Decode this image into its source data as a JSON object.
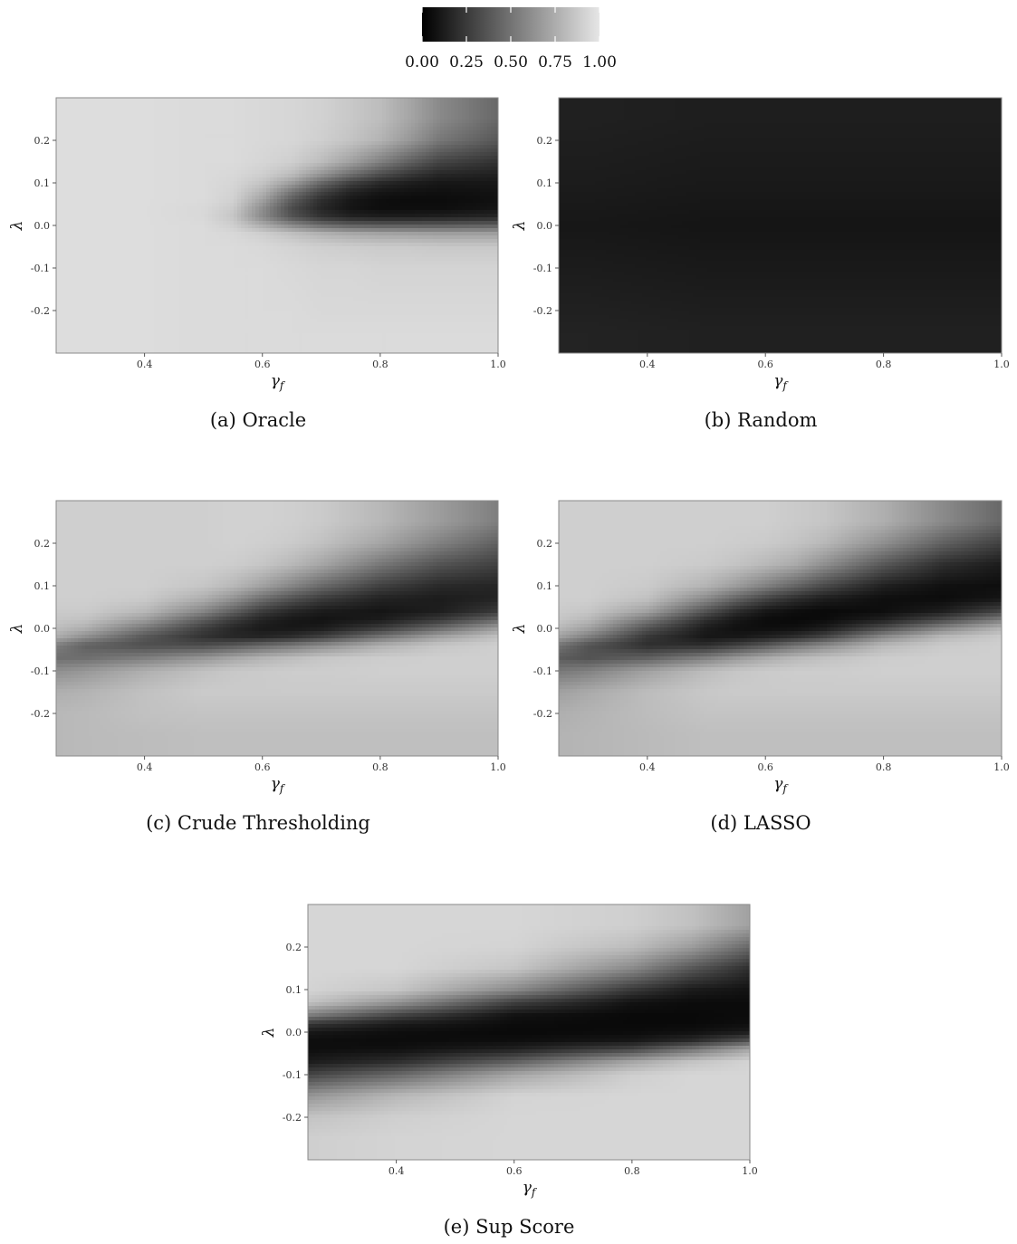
{
  "legend": {
    "ticks": [
      "0.00",
      "0.25",
      "0.50",
      "0.75",
      "1.00"
    ],
    "tick_values": [
      0,
      0.25,
      0.5,
      0.75,
      1.0
    ],
    "range": [
      0,
      1
    ],
    "colors": [
      "#000000",
      "#e6e6e6"
    ]
  },
  "chart_data": [
    {
      "type": "heatmap",
      "caption": "(a) Oracle",
      "xlabel": "γf",
      "ylabel": "λ",
      "xlim": [
        0.25,
        1.0
      ],
      "ylim": [
        -0.3,
        0.3
      ],
      "xticks": [
        0.4,
        0.6,
        0.8,
        1.0
      ],
      "xtick_labels": [
        "0.4",
        "0.6",
        "0.8",
        "1.0"
      ],
      "yticks": [
        0.2,
        0.1,
        0.0,
        -0.1,
        -0.2
      ],
      "ytick_labels": [
        "0.2",
        "0.1",
        "0.0",
        "-0.1",
        "-0.2"
      ],
      "x": [
        0.3,
        0.4,
        0.5,
        0.55,
        0.6,
        0.65,
        0.7,
        0.75,
        0.8,
        0.85,
        0.9,
        1.0
      ],
      "y": [
        0.25,
        0.2,
        0.15,
        0.12,
        0.1,
        0.08,
        0.06,
        0.04,
        0.02,
        0.0,
        -0.02,
        -0.05,
        -0.1,
        -0.2,
        -0.25
      ],
      "z": [
        [
          0.96,
          0.96,
          0.95,
          0.95,
          0.94,
          0.93,
          0.91,
          0.87,
          0.82,
          0.72,
          0.6,
          0.45
        ],
        [
          0.96,
          0.96,
          0.95,
          0.95,
          0.94,
          0.93,
          0.9,
          0.85,
          0.78,
          0.66,
          0.52,
          0.38
        ],
        [
          0.96,
          0.96,
          0.95,
          0.95,
          0.93,
          0.9,
          0.82,
          0.7,
          0.56,
          0.42,
          0.3,
          0.22
        ],
        [
          0.96,
          0.96,
          0.95,
          0.94,
          0.9,
          0.82,
          0.65,
          0.48,
          0.34,
          0.24,
          0.17,
          0.14
        ],
        [
          0.96,
          0.96,
          0.95,
          0.93,
          0.85,
          0.68,
          0.45,
          0.28,
          0.18,
          0.13,
          0.1,
          0.1
        ],
        [
          0.96,
          0.96,
          0.95,
          0.92,
          0.78,
          0.52,
          0.3,
          0.16,
          0.1,
          0.08,
          0.07,
          0.08
        ],
        [
          0.96,
          0.96,
          0.95,
          0.91,
          0.7,
          0.4,
          0.2,
          0.1,
          0.06,
          0.05,
          0.05,
          0.07
        ],
        [
          0.96,
          0.96,
          0.94,
          0.88,
          0.62,
          0.33,
          0.17,
          0.09,
          0.06,
          0.06,
          0.06,
          0.09
        ],
        [
          0.96,
          0.96,
          0.94,
          0.86,
          0.6,
          0.36,
          0.22,
          0.15,
          0.13,
          0.13,
          0.14,
          0.17
        ],
        [
          0.96,
          0.96,
          0.95,
          0.9,
          0.75,
          0.6,
          0.48,
          0.42,
          0.4,
          0.4,
          0.4,
          0.42
        ],
        [
          0.96,
          0.96,
          0.95,
          0.94,
          0.9,
          0.84,
          0.78,
          0.74,
          0.72,
          0.71,
          0.7,
          0.7
        ],
        [
          0.96,
          0.96,
          0.95,
          0.95,
          0.94,
          0.92,
          0.9,
          0.89,
          0.88,
          0.88,
          0.87,
          0.87
        ],
        [
          0.96,
          0.96,
          0.95,
          0.95,
          0.95,
          0.94,
          0.93,
          0.93,
          0.92,
          0.92,
          0.92,
          0.92
        ],
        [
          0.96,
          0.96,
          0.95,
          0.95,
          0.95,
          0.95,
          0.94,
          0.94,
          0.94,
          0.94,
          0.94,
          0.94
        ],
        [
          0.96,
          0.96,
          0.95,
          0.95,
          0.95,
          0.95,
          0.95,
          0.95,
          0.95,
          0.95,
          0.95,
          0.95
        ]
      ]
    },
    {
      "type": "heatmap",
      "caption": "(b) Random",
      "xlabel": "γf",
      "ylabel": "λ",
      "xlim": [
        0.25,
        1.0
      ],
      "ylim": [
        -0.3,
        0.3
      ],
      "xticks": [
        0.4,
        0.6,
        0.8,
        1.0
      ],
      "xtick_labels": [
        "0.4",
        "0.6",
        "0.8",
        "1.0"
      ],
      "yticks": [
        0.2,
        0.1,
        0.0,
        -0.1,
        -0.2
      ],
      "ytick_labels": [
        "0.2",
        "0.1",
        "0.0",
        "-0.1",
        "-0.2"
      ],
      "x": [
        0.3,
        0.5,
        0.7,
        0.9,
        1.0
      ],
      "y": [
        0.25,
        0.1,
        0.0,
        -0.1,
        -0.25
      ],
      "z": [
        [
          0.14,
          0.13,
          0.13,
          0.13,
          0.13
        ],
        [
          0.12,
          0.11,
          0.11,
          0.11,
          0.11
        ],
        [
          0.1,
          0.09,
          0.09,
          0.09,
          0.09
        ],
        [
          0.12,
          0.11,
          0.11,
          0.11,
          0.11
        ],
        [
          0.15,
          0.14,
          0.14,
          0.14,
          0.14
        ]
      ]
    },
    {
      "type": "heatmap",
      "caption": "(c) Crude Thresholding",
      "xlabel": "γf",
      "ylabel": "λ",
      "xlim": [
        0.25,
        1.0
      ],
      "ylim": [
        -0.3,
        0.3
      ],
      "xticks": [
        0.4,
        0.6,
        0.8,
        1.0
      ],
      "xtick_labels": [
        "0.4",
        "0.6",
        "0.8",
        "1.0"
      ],
      "yticks": [
        0.2,
        0.1,
        0.0,
        -0.1,
        -0.2
      ],
      "ytick_labels": [
        "0.2",
        "0.1",
        "0.0",
        "-0.1",
        "-0.2"
      ],
      "x": [
        0.25,
        0.3,
        0.4,
        0.5,
        0.55,
        0.6,
        0.65,
        0.7,
        0.8,
        0.9,
        1.0
      ],
      "y": [
        0.25,
        0.2,
        0.15,
        0.1,
        0.07,
        0.04,
        0.02,
        0.0,
        -0.02,
        -0.04,
        -0.07,
        -0.1,
        -0.15,
        -0.2,
        -0.25
      ],
      "z": [
        [
          0.9,
          0.9,
          0.9,
          0.9,
          0.91,
          0.91,
          0.9,
          0.88,
          0.8,
          0.68,
          0.55
        ],
        [
          0.9,
          0.9,
          0.9,
          0.9,
          0.91,
          0.9,
          0.88,
          0.84,
          0.72,
          0.56,
          0.42
        ],
        [
          0.9,
          0.9,
          0.9,
          0.9,
          0.89,
          0.86,
          0.8,
          0.72,
          0.52,
          0.36,
          0.28
        ],
        [
          0.9,
          0.9,
          0.9,
          0.86,
          0.8,
          0.7,
          0.58,
          0.46,
          0.28,
          0.18,
          0.16
        ],
        [
          0.9,
          0.9,
          0.88,
          0.76,
          0.64,
          0.48,
          0.36,
          0.26,
          0.15,
          0.12,
          0.15
        ],
        [
          0.88,
          0.88,
          0.8,
          0.58,
          0.42,
          0.26,
          0.17,
          0.12,
          0.09,
          0.13,
          0.25
        ],
        [
          0.86,
          0.84,
          0.68,
          0.4,
          0.26,
          0.15,
          0.1,
          0.08,
          0.12,
          0.25,
          0.45
        ],
        [
          0.82,
          0.76,
          0.52,
          0.27,
          0.17,
          0.11,
          0.1,
          0.12,
          0.26,
          0.46,
          0.68
        ],
        [
          0.75,
          0.62,
          0.38,
          0.22,
          0.17,
          0.16,
          0.2,
          0.28,
          0.5,
          0.7,
          0.84
        ],
        [
          0.55,
          0.42,
          0.34,
          0.33,
          0.38,
          0.45,
          0.52,
          0.6,
          0.76,
          0.86,
          0.9
        ],
        [
          0.48,
          0.48,
          0.55,
          0.65,
          0.72,
          0.78,
          0.82,
          0.86,
          0.89,
          0.9,
          0.9
        ],
        [
          0.62,
          0.66,
          0.76,
          0.84,
          0.87,
          0.88,
          0.89,
          0.89,
          0.9,
          0.9,
          0.9
        ],
        [
          0.76,
          0.78,
          0.84,
          0.88,
          0.88,
          0.88,
          0.88,
          0.88,
          0.88,
          0.88,
          0.88
        ],
        [
          0.8,
          0.81,
          0.84,
          0.85,
          0.85,
          0.85,
          0.85,
          0.85,
          0.85,
          0.85,
          0.85
        ],
        [
          0.8,
          0.81,
          0.82,
          0.83,
          0.83,
          0.83,
          0.83,
          0.83,
          0.83,
          0.83,
          0.83
        ]
      ]
    },
    {
      "type": "heatmap",
      "caption": "(d) LASSO",
      "xlabel": "γf",
      "ylabel": "λ",
      "xlim": [
        0.25,
        1.0
      ],
      "ylim": [
        -0.3,
        0.3
      ],
      "xticks": [
        0.4,
        0.6,
        0.8,
        1.0
      ],
      "xtick_labels": [
        "0.4",
        "0.6",
        "0.8",
        "1.0"
      ],
      "yticks": [
        0.2,
        0.1,
        0.0,
        -0.1,
        -0.2
      ],
      "ytick_labels": [
        "0.2",
        "0.1",
        "0.0",
        "-0.1",
        "-0.2"
      ],
      "x": [
        0.25,
        0.3,
        0.4,
        0.5,
        0.55,
        0.6,
        0.65,
        0.7,
        0.8,
        0.9,
        1.0
      ],
      "y": [
        0.25,
        0.2,
        0.15,
        0.1,
        0.07,
        0.04,
        0.02,
        0.0,
        -0.02,
        -0.04,
        -0.07,
        -0.1,
        -0.15,
        -0.2,
        -0.25
      ],
      "z": [
        [
          0.9,
          0.9,
          0.9,
          0.9,
          0.9,
          0.9,
          0.88,
          0.86,
          0.76,
          0.6,
          0.45
        ],
        [
          0.9,
          0.9,
          0.9,
          0.9,
          0.89,
          0.88,
          0.85,
          0.8,
          0.62,
          0.42,
          0.28
        ],
        [
          0.9,
          0.9,
          0.9,
          0.88,
          0.85,
          0.8,
          0.74,
          0.62,
          0.38,
          0.2,
          0.12
        ],
        [
          0.9,
          0.9,
          0.88,
          0.78,
          0.68,
          0.56,
          0.44,
          0.32,
          0.14,
          0.07,
          0.06
        ],
        [
          0.9,
          0.9,
          0.84,
          0.6,
          0.44,
          0.3,
          0.2,
          0.13,
          0.06,
          0.05,
          0.09
        ],
        [
          0.88,
          0.86,
          0.7,
          0.36,
          0.2,
          0.1,
          0.06,
          0.04,
          0.06,
          0.13,
          0.3
        ],
        [
          0.86,
          0.8,
          0.52,
          0.2,
          0.1,
          0.05,
          0.04,
          0.05,
          0.14,
          0.32,
          0.55
        ],
        [
          0.8,
          0.7,
          0.36,
          0.12,
          0.07,
          0.06,
          0.07,
          0.12,
          0.34,
          0.58,
          0.78
        ],
        [
          0.7,
          0.55,
          0.24,
          0.1,
          0.1,
          0.14,
          0.2,
          0.3,
          0.6,
          0.8,
          0.88
        ],
        [
          0.5,
          0.36,
          0.2,
          0.2,
          0.28,
          0.38,
          0.5,
          0.6,
          0.8,
          0.88,
          0.9
        ],
        [
          0.4,
          0.36,
          0.42,
          0.56,
          0.66,
          0.74,
          0.8,
          0.84,
          0.89,
          0.9,
          0.9
        ],
        [
          0.52,
          0.56,
          0.7,
          0.82,
          0.86,
          0.88,
          0.89,
          0.89,
          0.9,
          0.9,
          0.9
        ],
        [
          0.7,
          0.74,
          0.82,
          0.87,
          0.88,
          0.88,
          0.88,
          0.88,
          0.88,
          0.88,
          0.88
        ],
        [
          0.76,
          0.78,
          0.82,
          0.85,
          0.85,
          0.85,
          0.85,
          0.85,
          0.85,
          0.85,
          0.85
        ],
        [
          0.78,
          0.79,
          0.81,
          0.83,
          0.83,
          0.83,
          0.83,
          0.83,
          0.83,
          0.83,
          0.83
        ]
      ]
    },
    {
      "type": "heatmap",
      "caption": "(e) Sup Score",
      "xlabel": "γf",
      "ylabel": "λ",
      "xlim": [
        0.25,
        1.0
      ],
      "ylim": [
        -0.3,
        0.3
      ],
      "xticks": [
        0.4,
        0.6,
        0.8,
        1.0
      ],
      "xtick_labels": [
        "0.4",
        "0.6",
        "0.8",
        "1.0"
      ],
      "yticks": [
        0.2,
        0.1,
        0.0,
        -0.1,
        -0.2
      ],
      "ytick_labels": [
        "0.2",
        "0.1",
        "0.0",
        "-0.1",
        "-0.2"
      ],
      "x": [
        0.25,
        0.4,
        0.6,
        0.8,
        0.9,
        1.0
      ],
      "y": [
        0.25,
        0.2,
        0.15,
        0.1,
        0.07,
        0.04,
        0.02,
        0.0,
        -0.02,
        -0.04,
        -0.07,
        -0.1,
        -0.15,
        -0.2,
        -0.25
      ],
      "z": [
        [
          0.93,
          0.93,
          0.93,
          0.9,
          0.84,
          0.7
        ],
        [
          0.93,
          0.93,
          0.92,
          0.82,
          0.68,
          0.45
        ],
        [
          0.93,
          0.93,
          0.86,
          0.6,
          0.38,
          0.2
        ],
        [
          0.92,
          0.86,
          0.6,
          0.25,
          0.12,
          0.08
        ],
        [
          0.85,
          0.65,
          0.28,
          0.08,
          0.05,
          0.05
        ],
        [
          0.55,
          0.3,
          0.08,
          0.04,
          0.04,
          0.05
        ],
        [
          0.25,
          0.12,
          0.05,
          0.04,
          0.04,
          0.06
        ],
        [
          0.1,
          0.06,
          0.04,
          0.05,
          0.07,
          0.12
        ],
        [
          0.06,
          0.05,
          0.06,
          0.1,
          0.18,
          0.35
        ],
        [
          0.06,
          0.07,
          0.14,
          0.3,
          0.5,
          0.72
        ],
        [
          0.12,
          0.2,
          0.42,
          0.72,
          0.85,
          0.92
        ],
        [
          0.3,
          0.45,
          0.72,
          0.9,
          0.93,
          0.93
        ],
        [
          0.65,
          0.8,
          0.92,
          0.93,
          0.93,
          0.93
        ],
        [
          0.85,
          0.9,
          0.93,
          0.93,
          0.93,
          0.93
        ],
        [
          0.9,
          0.92,
          0.93,
          0.93,
          0.93,
          0.93
        ]
      ]
    }
  ]
}
